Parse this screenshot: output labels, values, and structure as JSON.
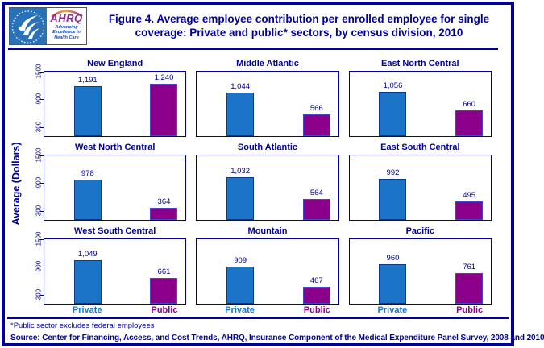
{
  "header": {
    "logo": {
      "hhs_symbol": "hhs-eagle",
      "ahrq_text": "AHRQ",
      "tagline_line1": "Advancing",
      "tagline_line2": "Excellence in",
      "tagline_line3": "Health Care"
    },
    "title_line1": "Figure 4. Average employee contribution per enrolled employee for single",
    "title_line2": "coverage: Private and public* sectors, by census division, 2010"
  },
  "chart_data": {
    "type": "bar",
    "title": "Figure 4. Average employee contribution per enrolled employee for single coverage: Private and public* sectors, by census division, 2010",
    "layout": "3x3 small multiples by census division, legend none, grid off",
    "categories": [
      "Private",
      "Public"
    ],
    "ylabel": "Average (Dollars)",
    "yticks": [
      300,
      900,
      1500
    ],
    "ylim": [
      100,
      1500
    ],
    "panels": [
      {
        "title": "New England",
        "values": [
          1191,
          1240
        ],
        "labels": [
          "1,191",
          "1,240"
        ]
      },
      {
        "title": "Middle Atlantic",
        "values": [
          1044,
          566
        ],
        "labels": [
          "1,044",
          "566"
        ]
      },
      {
        "title": "East North Central",
        "values": [
          1056,
          660
        ],
        "labels": [
          "1,056",
          "660"
        ]
      },
      {
        "title": "West North Central",
        "values": [
          978,
          364
        ],
        "labels": [
          "978",
          "364"
        ]
      },
      {
        "title": "South Atlantic",
        "values": [
          1032,
          564
        ],
        "labels": [
          "1,032",
          "564"
        ]
      },
      {
        "title": "East South Central",
        "values": [
          992,
          495
        ],
        "labels": [
          "992",
          "495"
        ]
      },
      {
        "title": "West South Central",
        "values": [
          1049,
          661
        ],
        "labels": [
          "1,049",
          "661"
        ]
      },
      {
        "title": "Mountain",
        "values": [
          909,
          467
        ],
        "labels": [
          "909",
          "467"
        ]
      },
      {
        "title": "Pacific",
        "values": [
          960,
          761
        ],
        "labels": [
          "960",
          "761"
        ]
      }
    ]
  },
  "footer": {
    "note": "*Public sector excludes federal employees",
    "source": "Source: Center for Financing, Access, and Cost Trends, AHRQ, Insurance Component of the Medical Expenditure Panel Survey, 2008 and 2010"
  },
  "style": {
    "navy": "#000099",
    "private_bar": "#1B74C8",
    "private_border": "#0D3A8C",
    "public_bar": "#8B008B",
    "public_border": "#4646C8",
    "private_text": "#1874CD",
    "public_text": "#8B008B",
    "hhs_blue": "#2A71B8",
    "ahrq_purple": "#8B2F8F"
  }
}
